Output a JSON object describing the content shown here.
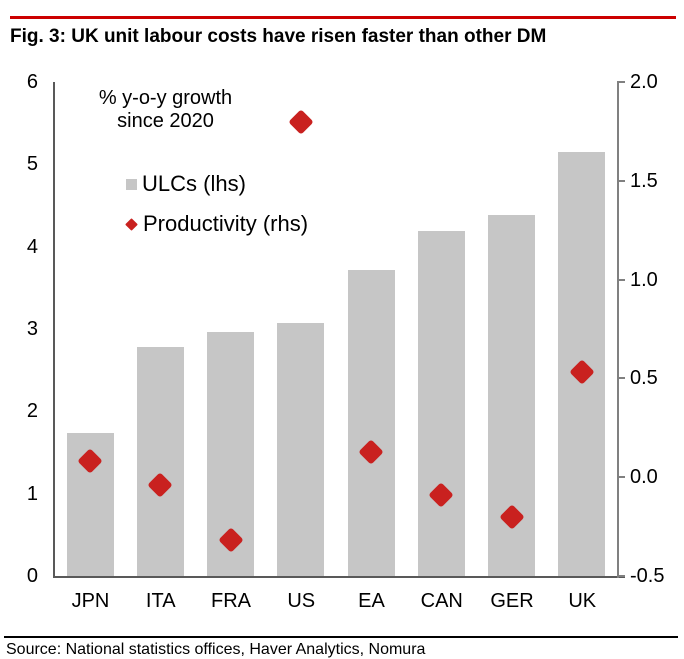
{
  "header": {
    "title": "Fig. 3: UK unit labour costs have risen faster than other DM"
  },
  "footer": {
    "source": "Source: National statistics offices, Haver Analytics, Nomura"
  },
  "colors": {
    "top_rule": "#cc0000",
    "bar": "#c6c6c6",
    "diamond": "#c9211f",
    "axis_left_bottom": "#595959",
    "axis_right": "#808080",
    "text": "#000000"
  },
  "chart_data": {
    "type": "bar",
    "subtype": "combo: bars (left axis) + diamond scatter markers (right axis)",
    "annotation": {
      "line1": "% y-o-y growth",
      "line2": "since 2020"
    },
    "categories": [
      "JPN",
      "ITA",
      "FRA",
      "US",
      "EA",
      "CAN",
      "GER",
      "UK"
    ],
    "series": [
      {
        "name": "ULCs (lhs)",
        "type": "bar",
        "axis": "left",
        "color": "#c6c6c6",
        "values": [
          1.74,
          2.78,
          2.96,
          3.07,
          3.72,
          4.19,
          4.38,
          5.15
        ]
      },
      {
        "name": "Productivity (rhs)",
        "type": "scatter",
        "marker": "diamond",
        "axis": "right",
        "color": "#c9211f",
        "values": [
          0.08,
          -0.04,
          -0.32,
          1.8,
          0.13,
          -0.09,
          -0.2,
          0.53
        ]
      }
    ],
    "left_axis": {
      "min": 0,
      "max": 6,
      "tick_labels": [
        "6",
        "5",
        "4",
        "3",
        "2",
        "1",
        "0"
      ]
    },
    "right_axis": {
      "min": -0.5,
      "max": 2.0,
      "tick_labels": [
        "2.0",
        "1.5",
        "1.0",
        "0.5",
        "0.0",
        "-0.5"
      ]
    },
    "grid": false,
    "legend_position": "inside top-left"
  }
}
